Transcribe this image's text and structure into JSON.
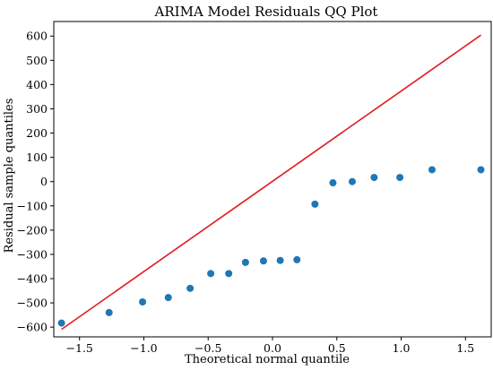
{
  "chart_data": {
    "type": "scatter",
    "title": "ARIMA Model Residuals QQ Plot",
    "xlabel": "Theoretical normal quantile",
    "ylabel": "Residual sample quantiles",
    "xlim": [
      -1.7,
      1.7
    ],
    "ylim": [
      -640,
      660
    ],
    "xticks": [
      -1.5,
      -1.0,
      -0.5,
      0.0,
      0.5,
      1.0,
      1.5
    ],
    "xtick_labels": [
      "−1.5",
      "−1.0",
      "−0.5",
      "0.0",
      "0.5",
      "1.0",
      "1.5"
    ],
    "yticks": [
      -600,
      -500,
      -400,
      -300,
      -200,
      -100,
      0,
      100,
      200,
      300,
      400,
      500,
      600
    ],
    "ytick_labels": [
      "−600",
      "−500",
      "−400",
      "−300",
      "−200",
      "−100",
      "0",
      "100",
      "200",
      "300",
      "400",
      "500",
      "600"
    ],
    "grid": false,
    "point_color": "#1f77b4",
    "line_color": "#e41a1c",
    "points": [
      {
        "x": -1.64,
        "y": -583
      },
      {
        "x": -1.27,
        "y": -540
      },
      {
        "x": -1.01,
        "y": -496
      },
      {
        "x": -0.81,
        "y": -478
      },
      {
        "x": -0.64,
        "y": -440
      },
      {
        "x": -0.48,
        "y": -379
      },
      {
        "x": -0.34,
        "y": -379
      },
      {
        "x": -0.21,
        "y": -333
      },
      {
        "x": -0.07,
        "y": -327
      },
      {
        "x": 0.06,
        "y": -325
      },
      {
        "x": 0.19,
        "y": -322
      },
      {
        "x": 0.33,
        "y": -93
      },
      {
        "x": 0.47,
        "y": -5
      },
      {
        "x": 0.62,
        "y": 0
      },
      {
        "x": 0.79,
        "y": 17
      },
      {
        "x": 0.99,
        "y": 17
      },
      {
        "x": 1.24,
        "y": 49
      },
      {
        "x": 1.62,
        "y": 49
      }
    ],
    "fit_line": {
      "x": [
        -1.64,
        1.62
      ],
      "y": [
        -609,
        604
      ]
    }
  }
}
